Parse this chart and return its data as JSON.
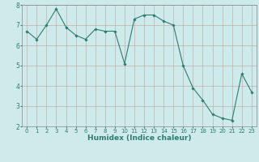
{
  "x": [
    0,
    1,
    2,
    3,
    4,
    5,
    6,
    7,
    8,
    9,
    10,
    11,
    12,
    13,
    14,
    15,
    16,
    17,
    18,
    19,
    20,
    21,
    22,
    23
  ],
  "y": [
    6.7,
    6.3,
    7.0,
    7.8,
    6.9,
    6.5,
    6.3,
    6.8,
    6.7,
    6.7,
    5.1,
    7.3,
    7.5,
    7.5,
    7.2,
    7.0,
    5.0,
    3.9,
    3.3,
    2.6,
    2.4,
    2.3,
    4.6,
    3.7
  ],
  "line_color": "#2e7d6e",
  "marker": "D",
  "marker_size": 1.8,
  "background_color": "#ceeaea",
  "grid_color": "#c0a0a0",
  "xlabel": "Humidex (Indice chaleur)",
  "xlim": [
    -0.5,
    23.5
  ],
  "ylim": [
    2,
    8
  ],
  "yticks": [
    2,
    3,
    4,
    5,
    6,
    7,
    8
  ],
  "xticks": [
    0,
    1,
    2,
    3,
    4,
    5,
    6,
    7,
    8,
    9,
    10,
    11,
    12,
    13,
    14,
    15,
    16,
    17,
    18,
    19,
    20,
    21,
    22,
    23
  ],
  "xtick_fontsize": 5.0,
  "ytick_fontsize": 5.5,
  "xlabel_fontsize": 6.5,
  "line_width": 0.8
}
